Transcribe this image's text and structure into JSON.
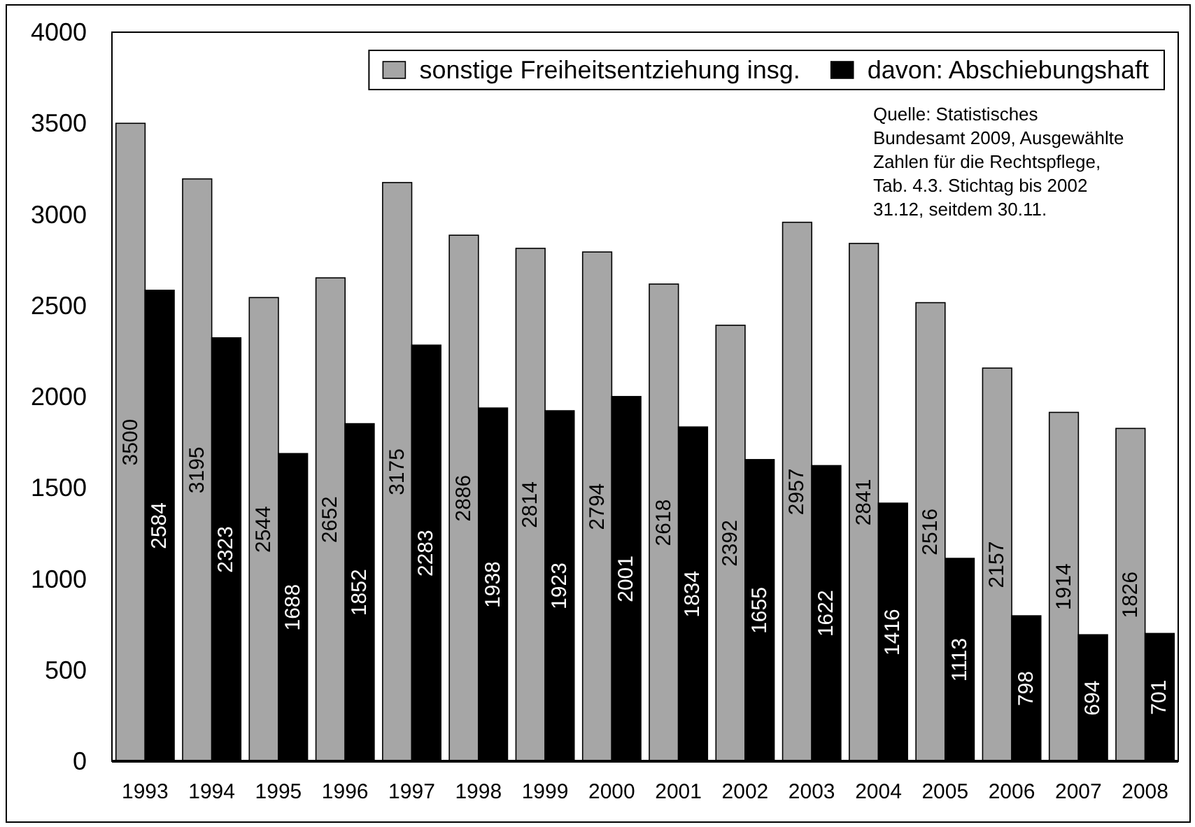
{
  "chart_data": {
    "type": "bar",
    "categories": [
      "1993",
      "1994",
      "1995",
      "1996",
      "1997",
      "1998",
      "1999",
      "2000",
      "2001",
      "2002",
      "2003",
      "2004",
      "2005",
      "2006",
      "2007",
      "2008"
    ],
    "series": [
      {
        "name": "sonstige Freiheitsentziehung insg.",
        "color": "#a6a6a6",
        "values": [
          3500,
          3195,
          2544,
          2652,
          3175,
          2886,
          2814,
          2794,
          2618,
          2392,
          2957,
          2841,
          2516,
          2157,
          1914,
          1826
        ]
      },
      {
        "name": "davon: Abschiebungshaft",
        "color": "#000000",
        "values": [
          2584,
          2323,
          1688,
          1852,
          2283,
          1938,
          1923,
          2001,
          1834,
          1655,
          1622,
          1416,
          1113,
          798,
          694,
          701
        ]
      }
    ],
    "ylim": [
      0,
      4000
    ],
    "yticks": [
      0,
      500,
      1000,
      1500,
      2000,
      2500,
      3000,
      3500,
      4000
    ],
    "data_labels": true,
    "legend": "top right",
    "grid": false,
    "annotations": [
      "Quelle: Statistisches\nBundesamt 2009, Ausgewählte\nZahlen für die Rechtspflege,\nTab. 4.3. Stichtag bis 2002\n31.12, seitdem 30.11."
    ]
  }
}
